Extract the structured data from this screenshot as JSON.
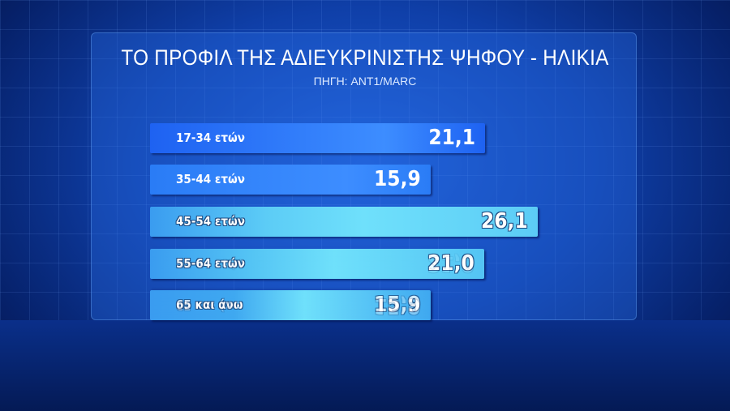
{
  "chart_data": {
    "type": "bar",
    "orientation": "horizontal",
    "title": "ΤΟ ΠΡΟΦΙΛ ΤΗΣ ΑΔΙΕΥΚΡΙΝΙΣΤΗΣ ΨΗΦΟΥ - ΗΛΙΚΙΑ",
    "subtitle": "ΠΗΓΗ: ANT1/MARC",
    "categories": [
      "17-34 ετών",
      "35-44 ετών",
      "45-54 ετών",
      "55-64 ετών",
      "65 και άνω"
    ],
    "values": [
      21.1,
      15.9,
      26.1,
      21.0,
      15.9
    ],
    "value_labels": [
      "21,1",
      "15,9",
      "26,1",
      "21,0",
      "15,9"
    ],
    "colors": [
      "#1e62f2",
      "#2a7cf6",
      "#5cccf6",
      "#54c4f4",
      "#3fa8f0"
    ],
    "grid": false
  }
}
